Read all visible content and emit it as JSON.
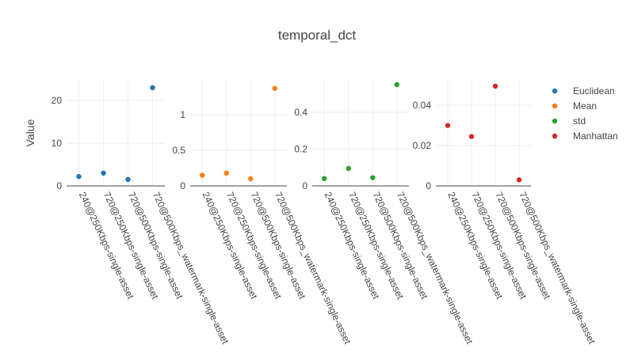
{
  "chart_data": {
    "type": "scatter",
    "title": "temporal_dct",
    "ylabel": "Value",
    "categories": [
      "240@250Kbps-single-asset",
      "720@250Kbps-single-asset",
      "720@500Kbps-single-asset",
      "720@500Kbps_watermark-single-asset"
    ],
    "legend_position": "right",
    "series": [
      {
        "name": "Euclidean",
        "color": "#1f77b4",
        "values": [
          2.2,
          3.0,
          1.5,
          23.0
        ],
        "ylim": [
          0,
          25
        ],
        "yticks": [
          0,
          10,
          20
        ],
        "ytick_labels": [
          "0",
          "10",
          "20"
        ]
      },
      {
        "name": "Mean",
        "color": "#ff7f0e",
        "values": [
          0.15,
          0.18,
          0.1,
          1.37
        ],
        "ylim": [
          0,
          1.5
        ],
        "yticks": [
          0,
          0.5,
          1
        ],
        "ytick_labels": [
          "0",
          "0.5",
          "1"
        ]
      },
      {
        "name": "std",
        "color": "#2ca02c",
        "values": [
          0.04,
          0.095,
          0.045,
          0.55
        ],
        "ylim": [
          0,
          0.58
        ],
        "yticks": [
          0,
          0.2,
          0.4
        ],
        "ytick_labels": [
          "0",
          "0.2",
          "0.4"
        ]
      },
      {
        "name": "Manhattan",
        "color": "#d62728",
        "values": [
          0.03,
          0.0245,
          0.0495,
          0.003
        ],
        "ylim": [
          0,
          0.053
        ],
        "yticks": [
          0,
          0.02,
          0.04
        ],
        "ytick_labels": [
          "0",
          "0.02",
          "0.04"
        ]
      }
    ]
  }
}
